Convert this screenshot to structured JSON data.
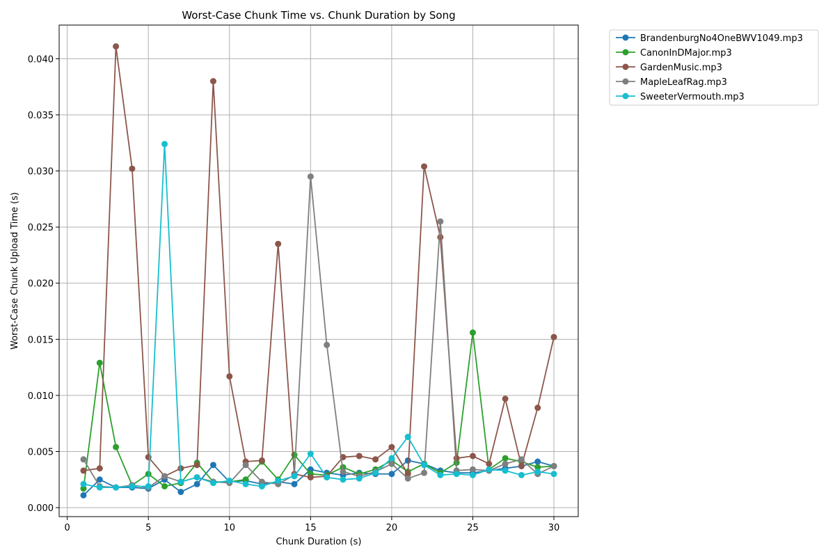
{
  "chart_data": {
    "type": "line",
    "title": "Worst-Case Chunk Time vs. Chunk Duration by Song",
    "xlabel": "Chunk Duration (s)",
    "ylabel": "Worst-Case Chunk Upload Time (s)",
    "xlim": [
      -0.5,
      31.5
    ],
    "ylim": [
      -0.0008,
      0.043
    ],
    "x_ticks": [
      0,
      5,
      10,
      15,
      20,
      25,
      30
    ],
    "x_tick_labels": [
      "0",
      "5",
      "10",
      "15",
      "20",
      "25",
      "30"
    ],
    "y_ticks": [
      0,
      0.005,
      0.01,
      0.015,
      0.02,
      0.025,
      0.03,
      0.035,
      0.04
    ],
    "y_tick_labels": [
      "0.000",
      "0.005",
      "0.010",
      "0.015",
      "0.020",
      "0.025",
      "0.030",
      "0.035",
      "0.040"
    ],
    "grid": true,
    "legend_position": "outside-top-right",
    "x": [
      1,
      2,
      3,
      4,
      5,
      6,
      7,
      8,
      9,
      10,
      11,
      12,
      13,
      14,
      15,
      16,
      17,
      18,
      19,
      20,
      21,
      22,
      23,
      24,
      25,
      26,
      27,
      28,
      29,
      30
    ],
    "series": [
      {
        "name": "BrandenburgNo4OneBWV1049.mp3",
        "color": "#1f77b4",
        "values": [
          0.0011,
          0.0025,
          0.0018,
          0.0018,
          0.0017,
          0.0025,
          0.0014,
          0.0021,
          0.0038,
          0.0023,
          0.0024,
          0.0021,
          0.0023,
          0.0021,
          0.0034,
          0.0031,
          0.0029,
          0.0031,
          0.003,
          0.003,
          0.0042,
          0.0039,
          0.0033,
          0.0031,
          0.0031,
          0.0033,
          0.0035,
          0.0037,
          0.0041,
          0.0037
        ]
      },
      {
        "name": "CanonInDMajor.mp3",
        "color": "#2ca02c",
        "values": [
          0.0017,
          0.0129,
          0.0054,
          0.002,
          0.003,
          0.0019,
          0.0022,
          0.004,
          0.0023,
          0.0023,
          0.0025,
          0.0041,
          0.0025,
          0.0047,
          0.003,
          0.0029,
          0.0036,
          0.003,
          0.0034,
          0.0042,
          0.0032,
          0.0039,
          0.0031,
          0.004,
          0.0156,
          0.0034,
          0.0044,
          0.0041,
          0.0036,
          0.0037
        ]
      },
      {
        "name": "GardenMusic.mp3",
        "color": "#8c564b",
        "values": [
          0.0033,
          0.0035,
          0.0411,
          0.0302,
          0.0045,
          0.0028,
          0.0035,
          0.0038,
          0.038,
          0.0117,
          0.0041,
          0.0042,
          0.0235,
          0.003,
          0.0027,
          0.0028,
          0.0045,
          0.0046,
          0.0043,
          0.0054,
          0.003,
          0.0304,
          0.0241,
          0.0044,
          0.0046,
          0.0039,
          0.0097,
          0.0037,
          0.0089,
          0.0152
        ]
      },
      {
        "name": "MapleLeafRag.mp3",
        "color": "#7f7f7f",
        "values": [
          0.0043,
          0.0019,
          0.0018,
          0.002,
          0.0018,
          0.0028,
          0.0023,
          0.0027,
          0.0023,
          0.0022,
          0.0038,
          0.0023,
          0.0021,
          0.0029,
          0.0295,
          0.0145,
          0.0032,
          0.0028,
          0.0032,
          0.0039,
          0.0026,
          0.0031,
          0.0255,
          0.0033,
          0.0034,
          0.0033,
          0.0039,
          0.0043,
          0.003,
          0.0037
        ]
      },
      {
        "name": "SweeterVermouth.mp3",
        "color": "#17becf",
        "values": [
          0.0021,
          0.0018,
          0.0018,
          0.0019,
          0.0019,
          0.0324,
          0.0023,
          0.0027,
          0.0022,
          0.0024,
          0.0021,
          0.0019,
          0.0024,
          0.0028,
          0.0048,
          0.0027,
          0.0025,
          0.0026,
          0.0031,
          0.0044,
          0.0063,
          0.0038,
          0.0029,
          0.003,
          0.0029,
          0.0034,
          0.0033,
          0.0029,
          0.0032,
          0.003
        ]
      }
    ]
  }
}
